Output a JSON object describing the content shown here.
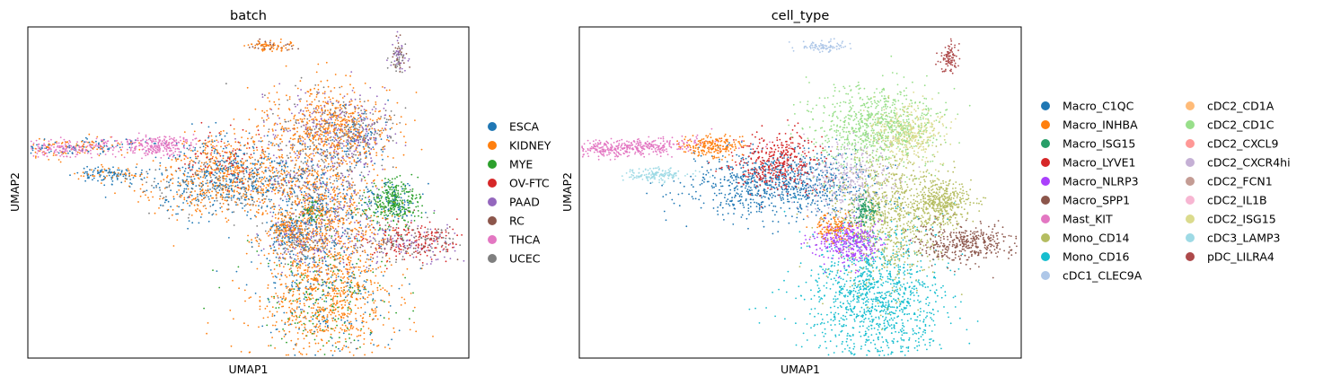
{
  "chart_data": [
    {
      "type": "scatter",
      "title": "batch",
      "xlabel": "UMAP1",
      "ylabel": "UMAP2",
      "grid": false,
      "legend_placement": "right",
      "legend_columns": 1,
      "legend": [
        {
          "name": "ESCA",
          "color": "#1f77b4"
        },
        {
          "name": "KIDNEY",
          "color": "#ff7f0e"
        },
        {
          "name": "MYE",
          "color": "#2ca02c"
        },
        {
          "name": "OV-FTC",
          "color": "#d62728"
        },
        {
          "name": "PAAD",
          "color": "#9467bd"
        },
        {
          "name": "RC",
          "color": "#8c564b"
        },
        {
          "name": "THCA",
          "color": "#e377c2"
        },
        {
          "name": "UCEC",
          "color": "#7f7f7f"
        }
      ]
    },
    {
      "type": "scatter",
      "title": "cell_type",
      "xlabel": "UMAP1",
      "ylabel": "UMAP2",
      "grid": false,
      "legend_placement": "right",
      "legend_columns": 2,
      "legend": [
        {
          "name": "Macro_C1QC",
          "color": "#1f77b4"
        },
        {
          "name": "Macro_INHBA",
          "color": "#ff7f0e"
        },
        {
          "name": "Macro_ISG15",
          "color": "#279e68"
        },
        {
          "name": "Macro_LYVE1",
          "color": "#d62728"
        },
        {
          "name": "Macro_NLRP3",
          "color": "#aa40fc"
        },
        {
          "name": "Macro_SPP1",
          "color": "#8c564b"
        },
        {
          "name": "Mast_KIT",
          "color": "#e377c2"
        },
        {
          "name": "Mono_CD14",
          "color": "#b5bd61"
        },
        {
          "name": "Mono_CD16",
          "color": "#17becf"
        },
        {
          "name": "cDC1_CLEC9A",
          "color": "#aec7e8"
        },
        {
          "name": "cDC2_CD1A",
          "color": "#ffbb78"
        },
        {
          "name": "cDC2_CD1C",
          "color": "#98df8a"
        },
        {
          "name": "cDC2_CXCL9",
          "color": "#ff9896"
        },
        {
          "name": "cDC2_CXCR4hi",
          "color": "#c5b0d5"
        },
        {
          "name": "cDC2_FCN1",
          "color": "#c49c94"
        },
        {
          "name": "cDC2_IL1B",
          "color": "#f7b6d2"
        },
        {
          "name": "cDC2_ISG15",
          "color": "#dbdb8d"
        },
        {
          "name": "cDC3_LAMP3",
          "color": "#9edae5"
        },
        {
          "name": "pDC_LILRA4",
          "color": "#ad494a"
        }
      ]
    }
  ]
}
